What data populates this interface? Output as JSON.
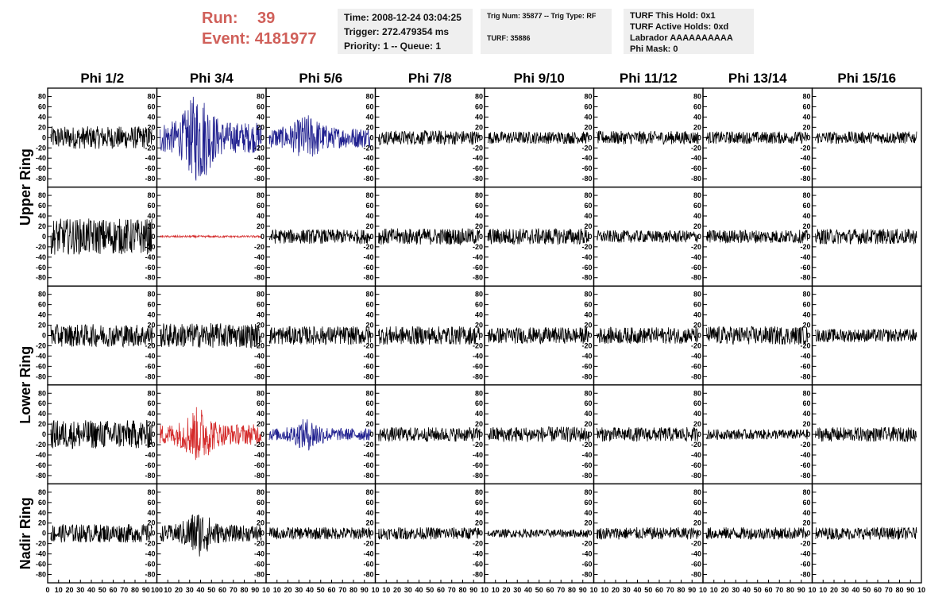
{
  "header": {
    "run_label": "Run:",
    "run_value": "39",
    "event_label": "Event:",
    "event_value": "4181977",
    "time_line": "Time: 2008-12-24 03:04:25",
    "trigger_line": "Trigger: 272.479354 ms",
    "priority_line": "Priority: 1 -- Queue: 1",
    "trig_line": "Trig Num: 35877 -- Trig Type: RF",
    "turf_line": "TURF: 35886",
    "turf_hold_line": "TURF This Hold: 0x1",
    "turf_active_line": "TURF Active Holds: 0xd",
    "labrador_line": "Labrador AAAAAAAAAA",
    "phimask_line": "Phi Mask: 0"
  },
  "colors": {
    "accent_red": "#d0605a",
    "trace_black": "#000000",
    "trace_blue": "#1f1f8f",
    "trace_red": "#d42a2a"
  },
  "chart_data": {
    "type": "line",
    "layout": "grid",
    "columns": [
      "Phi 1/2",
      "Phi 3/4",
      "Phi 5/6",
      "Phi 7/8",
      "Phi 9/10",
      "Phi 11/12",
      "Phi 13/14",
      "Phi 15/16"
    ],
    "rows": [
      {
        "id": "upper-a",
        "group": "Upper Ring"
      },
      {
        "id": "upper-b",
        "group": "Upper Ring"
      },
      {
        "id": "lower-a",
        "group": "Lower Ring"
      },
      {
        "id": "lower-b",
        "group": "Lower Ring"
      },
      {
        "id": "nadir",
        "group": "Nadir Ring"
      }
    ],
    "ring_labels": [
      "Upper Ring",
      "Lower Ring",
      "Nadir Ring"
    ],
    "xlim": [
      0,
      100
    ],
    "ylim": [
      -90,
      90
    ],
    "yticks": [
      "80",
      "60",
      "40",
      "20",
      "0",
      "-20",
      "-40",
      "-60",
      "-80"
    ],
    "xticks_first": [
      "0",
      "10",
      "20",
      "30",
      "40",
      "50",
      "60",
      "70",
      "80",
      "90",
      "100"
    ],
    "xticks_other": [
      "10",
      "20",
      "30",
      "40",
      "50",
      "60",
      "70",
      "80",
      "90",
      "10"
    ],
    "panels": [
      [
        {
          "amp": 22,
          "burst": 0,
          "color": "black"
        },
        {
          "amp": 30,
          "burst": 60,
          "color": "blue"
        },
        {
          "amp": 20,
          "burst": 25,
          "color": "blue"
        },
        {
          "amp": 14,
          "burst": 0,
          "color": "black"
        },
        {
          "amp": 12,
          "burst": 0,
          "color": "black"
        },
        {
          "amp": 13,
          "burst": 0,
          "color": "black"
        },
        {
          "amp": 12,
          "burst": 0,
          "color": "black"
        },
        {
          "amp": 12,
          "burst": 0,
          "color": "black"
        }
      ],
      [
        {
          "amp": 35,
          "burst": 0,
          "color": "black"
        },
        {
          "amp": 2,
          "burst": 0,
          "color": "red"
        },
        {
          "amp": 14,
          "burst": 0,
          "color": "black"
        },
        {
          "amp": 16,
          "burst": 0,
          "color": "black"
        },
        {
          "amp": 16,
          "burst": 0,
          "color": "black"
        },
        {
          "amp": 12,
          "burst": 0,
          "color": "black"
        },
        {
          "amp": 13,
          "burst": 0,
          "color": "black"
        },
        {
          "amp": 15,
          "burst": 0,
          "color": "black"
        }
      ],
      [
        {
          "amp": 22,
          "burst": 0,
          "color": "black"
        },
        {
          "amp": 24,
          "burst": 0,
          "color": "black"
        },
        {
          "amp": 18,
          "burst": 0,
          "color": "black"
        },
        {
          "amp": 18,
          "burst": 0,
          "color": "black"
        },
        {
          "amp": 16,
          "burst": 0,
          "color": "black"
        },
        {
          "amp": 16,
          "burst": 0,
          "color": "black"
        },
        {
          "amp": 18,
          "burst": 0,
          "color": "black"
        },
        {
          "amp": 13,
          "burst": 0,
          "color": "black"
        }
      ],
      [
        {
          "amp": 28,
          "burst": 0,
          "color": "black"
        },
        {
          "amp": 20,
          "burst": 35,
          "color": "red"
        },
        {
          "amp": 12,
          "burst": 20,
          "color": "blue"
        },
        {
          "amp": 14,
          "burst": 0,
          "color": "black"
        },
        {
          "amp": 15,
          "burst": 0,
          "color": "black"
        },
        {
          "amp": 14,
          "burst": 0,
          "color": "black"
        },
        {
          "amp": 10,
          "burst": 0,
          "color": "black"
        },
        {
          "amp": 14,
          "burst": 0,
          "color": "black"
        }
      ],
      [
        {
          "amp": 18,
          "burst": 0,
          "color": "black"
        },
        {
          "amp": 16,
          "burst": 30,
          "color": "black"
        },
        {
          "amp": 12,
          "burst": 0,
          "color": "black"
        },
        {
          "amp": 12,
          "burst": 0,
          "color": "black"
        },
        {
          "amp": 8,
          "burst": 0,
          "color": "black"
        },
        {
          "amp": 12,
          "burst": 0,
          "color": "black"
        },
        {
          "amp": 12,
          "burst": 0,
          "color": "black"
        },
        {
          "amp": 12,
          "burst": 0,
          "color": "black"
        }
      ]
    ]
  }
}
